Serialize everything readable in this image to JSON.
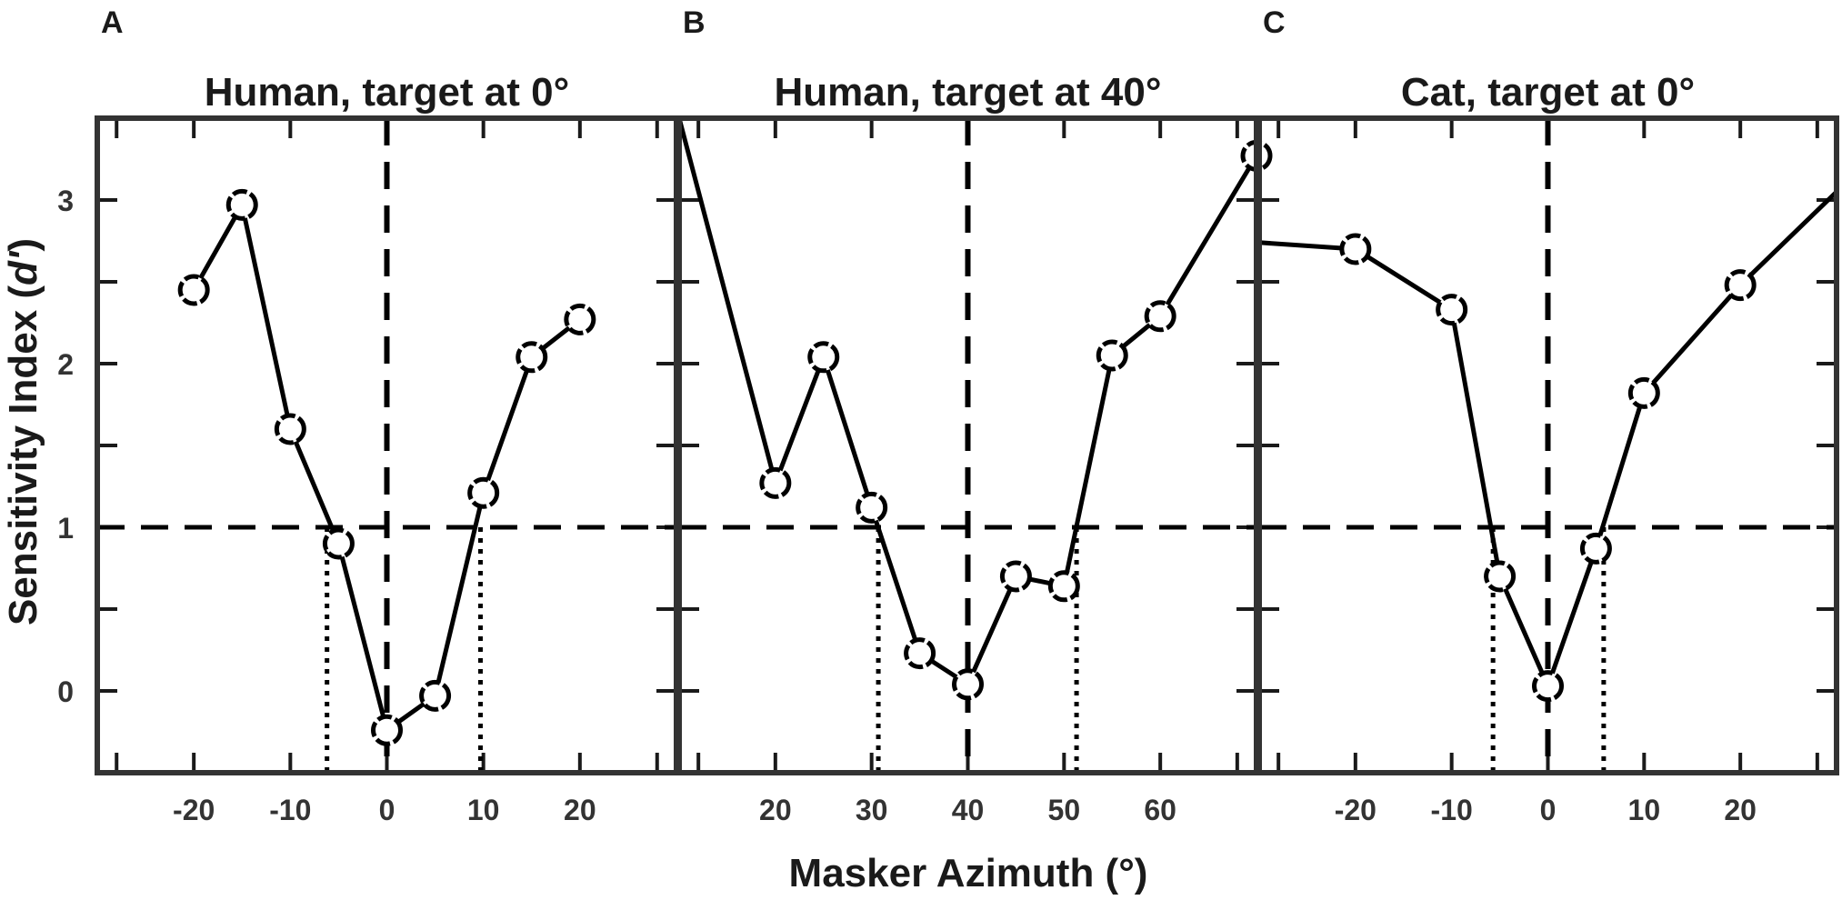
{
  "figure": {
    "xlabel": "Masker Azimuth (°)",
    "ylabel_main": "Sensitivity Index (",
    "ylabel_italic": "d'",
    "ylabel_end": ")"
  },
  "chart_data": [
    {
      "type": "line",
      "panel": "A",
      "title": "Human, target at 0°",
      "xlim": [
        -30,
        30
      ],
      "ylim": [
        -0.5,
        3.5
      ],
      "xticks": [
        -20,
        -10,
        0,
        10,
        20
      ],
      "yticks": [
        0,
        1,
        2,
        3
      ],
      "grid": false,
      "series": [
        {
          "x": [
            -20,
            -15,
            -10,
            -5,
            0,
            5,
            10,
            15,
            20
          ],
          "y": [
            2.45,
            2.97,
            1.6,
            0.9,
            -0.24,
            -0.03,
            1.21,
            2.04,
            2.27
          ]
        }
      ],
      "vline": 0,
      "hline": 1,
      "threshold_x": [
        -6.2,
        9.7
      ]
    },
    {
      "type": "line",
      "panel": "B",
      "title": "Human, target at 40°",
      "xlim": [
        10,
        70
      ],
      "ylim": [
        -0.5,
        3.5
      ],
      "xticks": [
        20,
        30,
        40,
        50,
        60
      ],
      "yticks": [
        0,
        1,
        2,
        3
      ],
      "grid": false,
      "series": [
        {
          "x": [
            10,
            20,
            25,
            30,
            35,
            40,
            45,
            50,
            55,
            60,
            70
          ],
          "y": [
            3.5,
            1.27,
            2.04,
            1.12,
            0.23,
            0.04,
            0.7,
            0.64,
            2.05,
            2.29,
            3.27
          ],
          "marker_x": [
            20,
            25,
            30,
            35,
            40,
            45,
            50,
            55,
            60,
            70
          ]
        }
      ],
      "vline": 40,
      "hline": 1,
      "threshold_x": [
        30.7,
        51.3
      ]
    },
    {
      "type": "line",
      "panel": "C",
      "title": "Cat, target at 0°",
      "xlim": [
        -30,
        30
      ],
      "ylim": [
        -0.5,
        3.5
      ],
      "xticks": [
        -20,
        -10,
        0,
        10,
        20
      ],
      "yticks": [
        0,
        1,
        2,
        3
      ],
      "grid": false,
      "series": [
        {
          "x": [
            -30,
            -20,
            -10,
            -5,
            0,
            5,
            10,
            20,
            30
          ],
          "y": [
            2.74,
            2.7,
            2.33,
            0.7,
            0.03,
            0.87,
            1.82,
            2.48,
            3.05
          ],
          "marker_x": [
            -20,
            -10,
            -5,
            0,
            5,
            10,
            20
          ]
        }
      ],
      "vline": 0,
      "hline": 1,
      "threshold_x": [
        -5.7,
        5.8
      ]
    }
  ]
}
